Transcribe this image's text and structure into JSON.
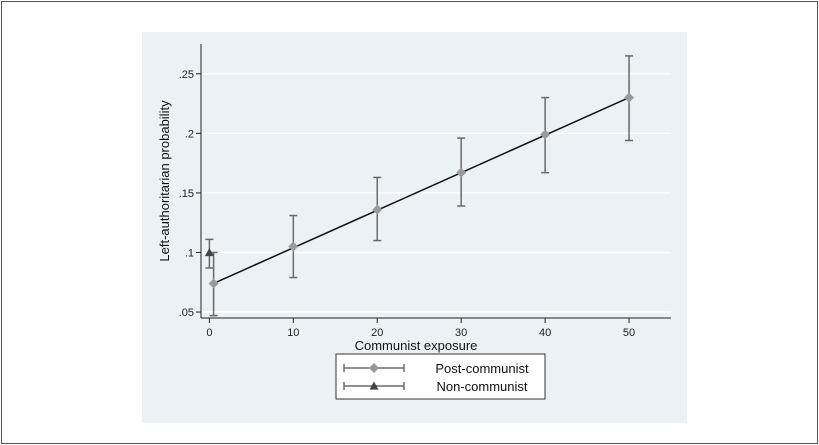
{
  "chart_data": {
    "type": "scatter",
    "title": "",
    "xlabel": "Communist exposure",
    "ylabel": "Left-authoritarian probability",
    "xlim": [
      -1,
      55
    ],
    "ylim": [
      0.045,
      0.275
    ],
    "x_ticks": [
      0,
      10,
      20,
      30,
      40,
      50
    ],
    "x_tick_labels": [
      "0",
      "10",
      "20",
      "30",
      "40",
      "50"
    ],
    "y_ticks": [
      0.05,
      0.1,
      0.15,
      0.2,
      0.25
    ],
    "y_tick_labels": [
      ".05",
      ".1",
      ".15",
      ".2",
      ".25"
    ],
    "grid": "horizontal",
    "legend": "bottom",
    "series": [
      {
        "name": "Post-communist",
        "marker": "diamond",
        "color": "#9a9a9a",
        "x": [
          0.5,
          10,
          20,
          30,
          40,
          50
        ],
        "y": [
          0.074,
          0.105,
          0.136,
          0.167,
          0.199,
          0.23
        ],
        "lower": [
          0.047,
          0.079,
          0.11,
          0.139,
          0.167,
          0.194
        ],
        "upper": [
          0.1,
          0.131,
          0.163,
          0.196,
          0.23,
          0.265
        ]
      },
      {
        "name": "Non-communist",
        "marker": "triangle",
        "color": "#444444",
        "x": [
          0
        ],
        "y": [
          0.1
        ],
        "lower": [
          0.087
        ],
        "upper": [
          0.111
        ]
      }
    ],
    "fit_line": {
      "x": [
        0.5,
        50
      ],
      "y": [
        0.074,
        0.23
      ],
      "color": "#111111"
    },
    "errorbar_color": "#6a6a6a"
  }
}
